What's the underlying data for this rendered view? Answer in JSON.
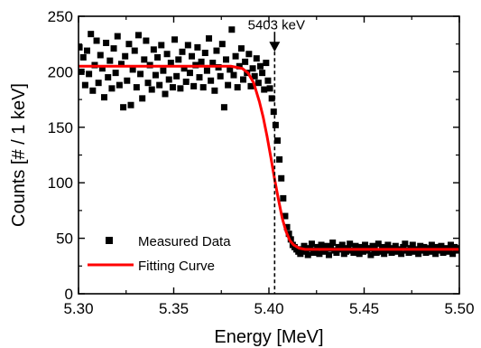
{
  "chart_data": {
    "type": "scatter",
    "title": "",
    "xlabel": "Energy [MeV]",
    "ylabel": "Counts [# / 1 keV]",
    "xlim": [
      5.3,
      5.5
    ],
    "ylim": [
      0,
      250
    ],
    "xticks": [
      "5.30",
      "5.35",
      "5.40",
      "5.45",
      "5.50"
    ],
    "yticks": [
      "0",
      "50",
      "100",
      "150",
      "200",
      "250"
    ],
    "grid": false,
    "legend_position": "bottom-left",
    "colors": {
      "measured": "#000000",
      "fit": "#ff0000",
      "vline": "#000000"
    },
    "series": [
      {
        "name": "Measured Data",
        "kind": "scatter",
        "marker": "square",
        "x": [
          5.3005,
          5.3015,
          5.3025,
          5.3035,
          5.3045,
          5.3055,
          5.3065,
          5.3075,
          5.3085,
          5.3095,
          5.3105,
          5.3115,
          5.3125,
          5.3135,
          5.3145,
          5.3155,
          5.3165,
          5.3175,
          5.3185,
          5.3195,
          5.3205,
          5.3215,
          5.3225,
          5.3235,
          5.3245,
          5.3255,
          5.3265,
          5.3275,
          5.3285,
          5.3295,
          5.3305,
          5.3315,
          5.3325,
          5.3335,
          5.3345,
          5.3355,
          5.3365,
          5.3375,
          5.3385,
          5.3395,
          5.3405,
          5.3415,
          5.3425,
          5.3435,
          5.3445,
          5.3455,
          5.3465,
          5.3475,
          5.3485,
          5.3495,
          5.3505,
          5.3515,
          5.3525,
          5.3535,
          5.3545,
          5.3555,
          5.3565,
          5.3575,
          5.3585,
          5.3595,
          5.3605,
          5.3615,
          5.3625,
          5.3635,
          5.3645,
          5.3655,
          5.3665,
          5.3675,
          5.3685,
          5.3695,
          5.3705,
          5.3715,
          5.3725,
          5.3735,
          5.3745,
          5.3755,
          5.3765,
          5.3775,
          5.3785,
          5.3795,
          5.3805,
          5.3815,
          5.3825,
          5.3835,
          5.3845,
          5.3855,
          5.3865,
          5.3875,
          5.3885,
          5.3895,
          5.3905,
          5.3915,
          5.3925,
          5.3935,
          5.3945,
          5.3955,
          5.3965,
          5.3975,
          5.3985,
          5.3995,
          5.4005,
          5.4015,
          5.4025,
          5.4035,
          5.4045,
          5.4055,
          5.4065,
          5.4075,
          5.4085,
          5.4095,
          5.4105,
          5.4115,
          5.4125,
          5.4135,
          5.4145,
          5.4155,
          5.4165,
          5.4175,
          5.4185,
          5.4195,
          5.4205,
          5.4215,
          5.4225,
          5.4235,
          5.4245,
          5.4255,
          5.4265,
          5.4275,
          5.4285,
          5.4295,
          5.4305,
          5.4315,
          5.4325,
          5.4335,
          5.4345,
          5.4355,
          5.4365,
          5.4375,
          5.4385,
          5.4395,
          5.4405,
          5.4415,
          5.4425,
          5.4435,
          5.4445,
          5.4455,
          5.4465,
          5.4475,
          5.4485,
          5.4495,
          5.4505,
          5.4515,
          5.4525,
          5.4535,
          5.4545,
          5.4555,
          5.4565,
          5.4575,
          5.4585,
          5.4595,
          5.4605,
          5.4615,
          5.4625,
          5.4635,
          5.4645,
          5.4655,
          5.4665,
          5.4675,
          5.4685,
          5.4695,
          5.4705,
          5.4715,
          5.4725,
          5.4735,
          5.4745,
          5.4755,
          5.4765,
          5.4775,
          5.4785,
          5.4795,
          5.4805,
          5.4815,
          5.4825,
          5.4835,
          5.4845,
          5.4855,
          5.4865,
          5.4875,
          5.4885,
          5.4895,
          5.4905,
          5.4915,
          5.4925,
          5.4935,
          5.4945,
          5.4955,
          5.4965,
          5.4975,
          5.4985,
          5.4995
        ],
        "y": [
          222,
          200,
          213,
          188,
          219,
          198,
          234,
          183,
          206,
          228,
          190,
          215,
          203,
          177,
          226,
          195,
          210,
          185,
          221,
          199,
          232,
          188,
          207,
          168,
          214,
          192,
          225,
          170,
          202,
          219,
          186,
          233,
          198,
          176,
          211,
          228,
          190,
          206,
          184,
          220,
          197,
          213,
          188,
          224,
          201,
          180,
          216,
          193,
          208,
          186,
          229,
          196,
          211,
          185,
          218,
          203,
          191,
          224,
          199,
          214,
          187,
          206,
          222,
          195,
          209,
          186,
          217,
          201,
          230,
          192,
          208,
          183,
          219,
          204,
          196,
          225,
          168,
          211,
          188,
          202,
          238,
          197,
          214,
          186,
          205,
          221,
          193,
          209,
          199,
          216,
          187,
          203,
          196,
          212,
          190,
          205,
          199,
          184,
          208,
          192,
          185,
          176,
          164,
          152,
          138,
          121,
          104,
          86,
          70,
          60,
          54,
          49,
          44,
          42,
          40,
          38,
          36,
          40,
          43,
          38,
          35,
          41,
          45,
          37,
          39,
          42,
          36,
          44,
          40,
          38,
          43,
          35,
          41,
          46,
          39,
          37,
          42,
          40,
          44,
          36,
          38,
          41,
          45,
          39,
          37,
          43,
          40,
          36,
          42,
          38,
          44,
          39,
          41,
          35,
          43,
          40,
          37,
          45,
          38,
          42,
          36,
          40,
          44,
          39,
          37,
          41,
          43,
          38,
          40,
          36,
          42,
          45,
          39,
          37,
          41,
          44,
          38,
          40,
          36,
          43,
          39,
          42,
          37,
          41,
          38,
          44,
          40,
          36,
          42,
          39,
          43,
          37,
          41,
          38,
          40,
          44,
          36,
          42,
          39,
          41
        ]
      },
      {
        "name": "Fitting Curve",
        "kind": "line",
        "x": [
          5.3,
          5.305,
          5.31,
          5.315,
          5.32,
          5.325,
          5.33,
          5.335,
          5.34,
          5.345,
          5.35,
          5.355,
          5.36,
          5.365,
          5.37,
          5.375,
          5.38,
          5.383,
          5.386,
          5.389,
          5.392,
          5.395,
          5.397,
          5.399,
          5.401,
          5.403,
          5.405,
          5.407,
          5.409,
          5.411,
          5.413,
          5.416,
          5.419,
          5.422,
          5.426,
          5.43,
          5.44,
          5.45,
          5.46,
          5.47,
          5.48,
          5.49,
          5.5
        ],
        "y": [
          205,
          205,
          205,
          205,
          205,
          205,
          205,
          205,
          205,
          205,
          205,
          205,
          205,
          205,
          205,
          205,
          205,
          204,
          203,
          199,
          190,
          173,
          159,
          142,
          123,
          103,
          85,
          68,
          56,
          48,
          44,
          41,
          40,
          40,
          40,
          40,
          40,
          40,
          40,
          40,
          40,
          40,
          40
        ]
      }
    ],
    "annotations": [
      {
        "text": "5403 keV",
        "x": 5.403,
        "y_text": 240,
        "arrow_from": 236,
        "arrow_to": 218,
        "vline_from": 218,
        "vline_to": 0
      }
    ]
  }
}
